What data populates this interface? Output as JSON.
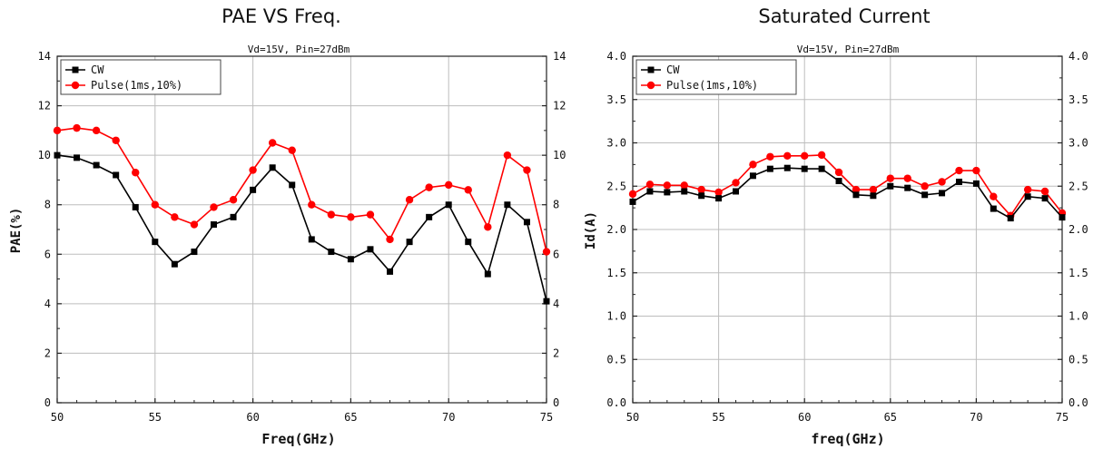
{
  "chart_data": [
    {
      "type": "line",
      "title": "PAE VS Freq.",
      "subtitle": "Vd=15V, Pin=27dBm",
      "xlabel": "Freq(GHz)",
      "ylabel": "PAE(%)",
      "xlim": [
        50,
        75
      ],
      "ylim": [
        0,
        14
      ],
      "xticks": [
        50,
        55,
        60,
        65,
        70,
        75
      ],
      "xtick_labels": [
        "50",
        "55",
        "60",
        "65",
        "70",
        "75"
      ],
      "yticks": [
        0,
        2,
        4,
        6,
        8,
        10,
        12,
        14
      ],
      "ytick_labels": [
        "0",
        "2",
        "4",
        "6",
        "8",
        "10",
        "12",
        "14"
      ],
      "right_ytick_labels": [
        "0",
        "2",
        "4",
        "6",
        "8",
        "10",
        "12",
        "14"
      ],
      "grid": true,
      "legend": "top-left",
      "x": [
        50,
        51,
        52,
        53,
        54,
        55,
        56,
        57,
        58,
        59,
        60,
        61,
        62,
        63,
        64,
        65,
        66,
        67,
        68,
        69,
        70,
        71,
        72,
        73,
        74,
        75
      ],
      "series": [
        {
          "name": "CW",
          "color": "#000000",
          "marker": "square",
          "values": [
            10.0,
            9.9,
            9.6,
            9.2,
            7.9,
            6.5,
            5.6,
            6.1,
            7.2,
            7.5,
            8.6,
            9.5,
            8.8,
            6.6,
            6.1,
            5.8,
            6.2,
            5.3,
            6.5,
            7.5,
            8.0,
            6.5,
            5.2,
            8.0,
            7.3,
            4.1
          ]
        },
        {
          "name": "Pulse(1ms,10%)",
          "color": "#ff0000",
          "marker": "circle",
          "values": [
            11.0,
            11.1,
            11.0,
            10.6,
            9.3,
            8.0,
            7.5,
            7.2,
            7.9,
            8.2,
            9.4,
            10.5,
            10.2,
            8.0,
            7.6,
            7.5,
            7.6,
            6.6,
            8.2,
            8.7,
            8.8,
            8.6,
            7.1,
            10.0,
            9.4,
            6.1
          ]
        }
      ]
    },
    {
      "type": "line",
      "title": "Saturated Current",
      "subtitle": "Vd=15V, Pin=27dBm",
      "xlabel": "freq(GHz)",
      "ylabel": "Id(A)",
      "xlim": [
        50,
        75
      ],
      "ylim": [
        0,
        4
      ],
      "xticks": [
        50,
        55,
        60,
        65,
        70,
        75
      ],
      "xtick_labels": [
        "50",
        "55",
        "60",
        "65",
        "70",
        "75"
      ],
      "yticks": [
        0,
        0.5,
        1.0,
        1.5,
        2.0,
        2.5,
        3.0,
        3.5,
        4.0
      ],
      "ytick_labels": [
        "0.0",
        "0.5",
        "1.0",
        "1.5",
        "2.0",
        "2.5",
        "3.0",
        "3.5",
        "4.0"
      ],
      "right_ytick_labels": [
        "0.0",
        "0.5",
        "1.0",
        "1.5",
        "2.0",
        "2.5",
        "3.0",
        "3.5",
        "4.0"
      ],
      "grid": true,
      "legend": "top-left",
      "x": [
        50,
        51,
        52,
        53,
        54,
        55,
        56,
        57,
        58,
        59,
        60,
        61,
        62,
        63,
        64,
        65,
        66,
        67,
        68,
        69,
        70,
        71,
        72,
        73,
        74,
        75
      ],
      "series": [
        {
          "name": "CW",
          "color": "#000000",
          "marker": "square",
          "values": [
            2.32,
            2.44,
            2.43,
            2.44,
            2.39,
            2.36,
            2.44,
            2.62,
            2.7,
            2.71,
            2.7,
            2.7,
            2.56,
            2.4,
            2.39,
            2.5,
            2.48,
            2.4,
            2.42,
            2.55,
            2.53,
            2.24,
            2.13,
            2.38,
            2.36,
            2.14
          ]
        },
        {
          "name": "Pulse(1ms,10%)",
          "color": "#ff0000",
          "marker": "circle",
          "values": [
            2.41,
            2.52,
            2.51,
            2.51,
            2.46,
            2.43,
            2.54,
            2.75,
            2.84,
            2.85,
            2.85,
            2.86,
            2.66,
            2.46,
            2.46,
            2.59,
            2.59,
            2.5,
            2.55,
            2.68,
            2.68,
            2.38,
            2.16,
            2.46,
            2.44,
            2.19
          ]
        }
      ]
    }
  ]
}
